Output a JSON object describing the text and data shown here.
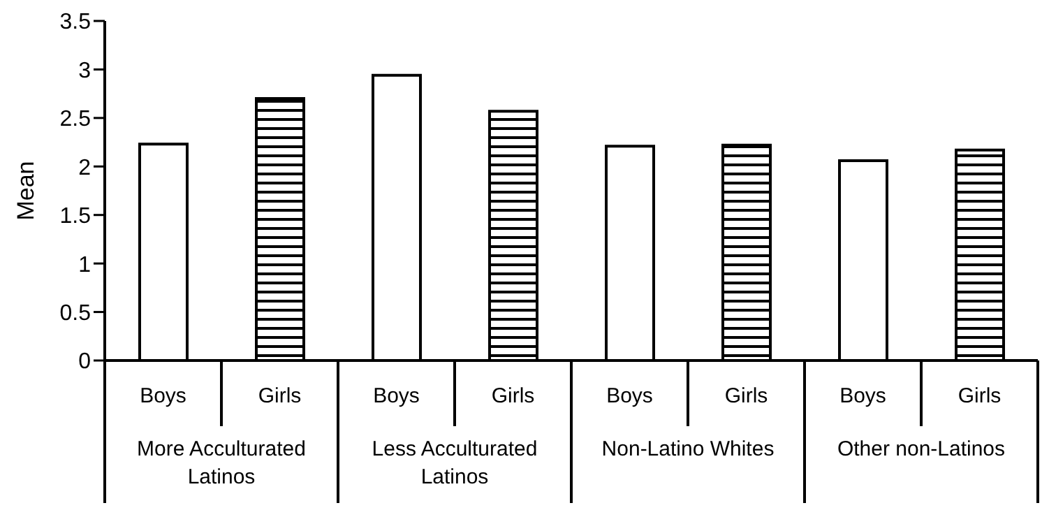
{
  "chart_data": {
    "type": "bar",
    "ylabel": "Mean",
    "categories": [
      "More Acculturated Latinos",
      "Less Acculturated Latinos",
      "Non-Latino Whites",
      "Other non-Latinos"
    ],
    "series": [
      {
        "name": "Boys",
        "color": "#ffffff",
        "values": [
          2.23,
          2.94,
          2.21,
          2.06
        ]
      },
      {
        "name": "Girls",
        "color": "#000000",
        "values": [
          2.7,
          2.57,
          2.22,
          2.17
        ]
      }
    ],
    "ylim": [
      0,
      3.5
    ],
    "yticks": [
      0,
      0.5,
      1,
      1.5,
      2,
      2.5,
      3,
      3.5
    ],
    "grid": false,
    "legend": false
  }
}
